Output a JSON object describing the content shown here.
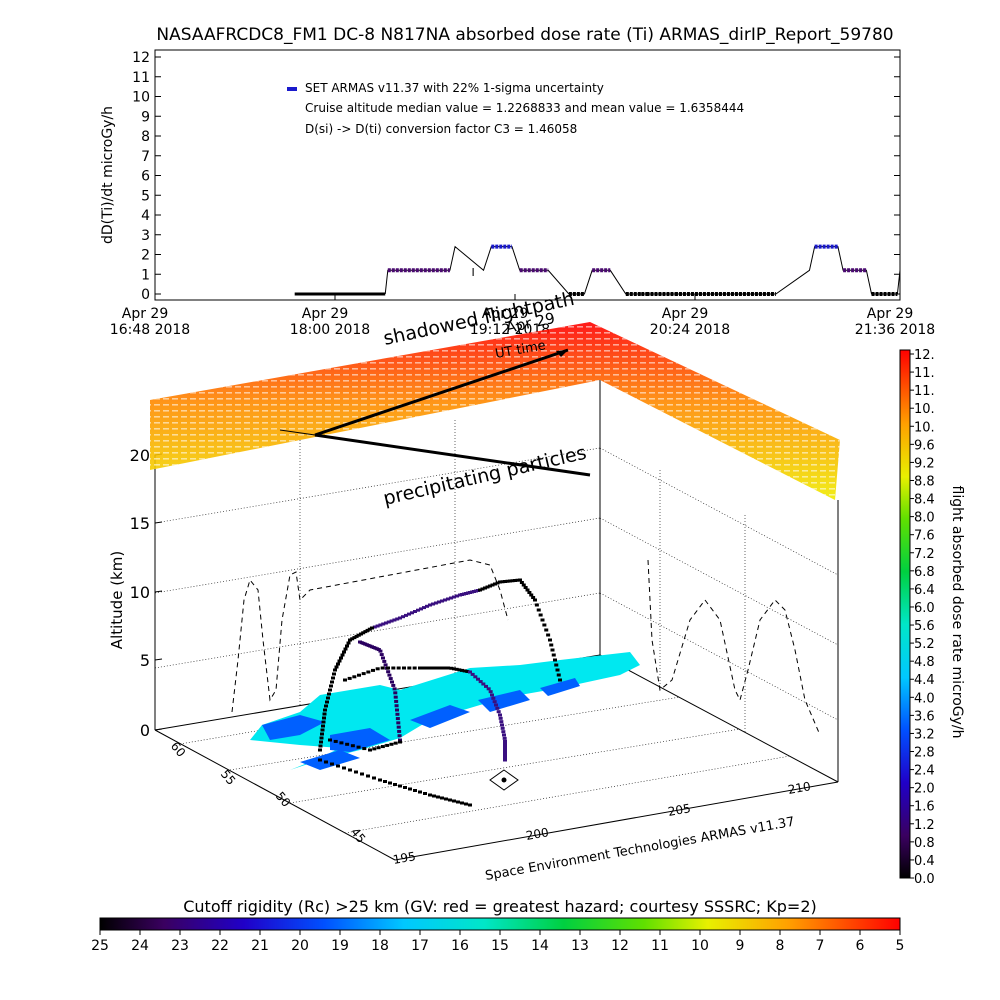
{
  "header": {
    "title": "NASAAFRCDC8_FM1 DC-8   N817NA absorbed dose rate (Ti) ARMAS_dirIP_Report_59780"
  },
  "top_plot": {
    "ylabel": "dD(Ti)/dt microGy/h",
    "yticks": [
      "0",
      "1",
      "2",
      "3",
      "4",
      "5",
      "6",
      "7",
      "8",
      "9",
      "10",
      "11",
      "12"
    ],
    "xticks": [
      {
        "line1": "Apr 29",
        "line2": "16:48 2018"
      },
      {
        "line1": "Apr 29",
        "line2": "18:00 2018"
      },
      {
        "line1": "Apr 29",
        "line2": "19:12 2018"
      },
      {
        "line1": "Apr 29",
        "line2": "20:24 2018"
      },
      {
        "line1": "Apr 29",
        "line2": "21:36 2018"
      }
    ],
    "legend": {
      "series": "SET ARMAS v11.37 with 22% 1-sigma uncertainty",
      "note1": "Cruise altitude median value = 1.2268833 and mean value = 1.6358444",
      "note2": "D(si) -> D(ti) conversion factor C3 = 1.46058"
    }
  },
  "chart_data": [
    {
      "type": "line",
      "title": "NASAAFRCDC8_FM1 DC-8   N817NA absorbed dose rate (Ti) ARMAS_dirIP_Report_59780",
      "xlabel": "",
      "ylabel": "dD(Ti)/dt microGy/h",
      "x_unit": "minutes after Apr 29 16:48 2018",
      "ylim": [
        0,
        12
      ],
      "xlim": [
        0,
        288
      ],
      "series": [
        {
          "name": "SET ARMAS v11.37 with 22% 1-sigma uncertainty",
          "x": [
            0,
            89,
            90,
            114,
            116,
            127,
            130,
            138,
            141,
            152,
            160,
            166,
            169,
            176,
            182,
            188,
            190,
            201,
            240,
            253,
            255,
            264,
            266,
            275,
            277,
            287,
            288
          ],
          "y": [
            null,
            0,
            1.2,
            1.2,
            2.4,
            1.2,
            2.4,
            2.4,
            1.2,
            1.2,
            0,
            0,
            1.2,
            1.2,
            0,
            0,
            0,
            0,
            0,
            1.2,
            2.4,
            2.4,
            1.2,
            1.2,
            0,
            0,
            1.2
          ]
        }
      ],
      "annotations": [
        "SET ARMAS v11.37 with 22% 1-sigma uncertainty",
        "Cruise altitude median value = 1.2268833 and mean value = 1.6358444",
        "D(si) -> D(ti) conversion factor C3 = 1.46058"
      ]
    },
    {
      "type": "scatter",
      "title": "",
      "ylabel": "Altitude (km)",
      "yticks": [
        "0",
        "5",
        "10",
        "15",
        "20"
      ],
      "ylim": [
        0,
        20
      ],
      "x_axis_ticks": [
        "195",
        "200",
        "205",
        "210"
      ],
      "depth_axis_ticks": [
        "45",
        "50",
        "55",
        "60"
      ],
      "annotations": [
        "shadowed flightpath",
        "UT time",
        "precipitating particles",
        "Apr 29",
        "Space Environment Technologies ARMAS v11.37"
      ]
    },
    {
      "type": "heatmap",
      "name": "colorbar-right",
      "label": "flight absorbed dose rate microGy/h",
      "ticks": [
        "12.",
        "11.",
        "11.",
        "10.",
        "10.",
        "9.6",
        "9.2",
        "8.8",
        "8.4",
        "8.0",
        "7.6",
        "7.2",
        "6.8",
        "6.4",
        "6.0",
        "5.6",
        "5.2",
        "4.8",
        "4.4",
        "4.0",
        "3.6",
        "3.2",
        "2.8",
        "2.4",
        "2.0",
        "1.6",
        "1.2",
        "0.8",
        "0.4",
        "0.0"
      ],
      "range": [
        0,
        12
      ]
    },
    {
      "type": "heatmap",
      "name": "colorbar-bottom",
      "label": "Cutoff rigidity (Rc) >25 km (GV: red = greatest hazard; courtesy SSSRC; Kp=2)",
      "ticks": [
        "25",
        "24",
        "23",
        "22",
        "21",
        "20",
        "19",
        "18",
        "17",
        "16",
        "15",
        "14",
        "13",
        "12",
        "11",
        "10",
        "9",
        "8",
        "7",
        "6",
        "5"
      ],
      "range": [
        25,
        5
      ]
    }
  ],
  "scene3d": {
    "ylabel": "Altitude (km)",
    "yticks": [
      "0",
      "5",
      "10",
      "15",
      "20"
    ],
    "xticks": [
      "195",
      "200",
      "205",
      "210"
    ],
    "depthticks": [
      "45",
      "50",
      "55",
      "60"
    ],
    "label_shadowed": "shadowed flightpath",
    "label_ut": "UT time",
    "label_precip": "precipitating particles",
    "label_apr": "Apr 29",
    "footer": "Space Environment Technologies ARMAS v11.37"
  },
  "colorbar_right": {
    "label": "flight absorbed dose rate microGy/h",
    "ticks": [
      "12.",
      "11.",
      "11.",
      "10.",
      "10.",
      "9.6",
      "9.2",
      "8.8",
      "8.4",
      "8.0",
      "7.6",
      "7.2",
      "6.8",
      "6.4",
      "6.0",
      "5.6",
      "5.2",
      "4.8",
      "4.4",
      "4.0",
      "3.6",
      "3.2",
      "2.8",
      "2.4",
      "2.0",
      "1.6",
      "1.2",
      "0.8",
      "0.4",
      "0.0"
    ]
  },
  "colorbar_bottom": {
    "label": "Cutoff rigidity (Rc) >25 km (GV: red = greatest hazard; courtesy SSSRC; Kp=2)",
    "ticks": [
      "25",
      "24",
      "23",
      "22",
      "21",
      "20",
      "19",
      "18",
      "17",
      "16",
      "15",
      "14",
      "13",
      "12",
      "11",
      "10",
      "9",
      "8",
      "7",
      "6",
      "5"
    ]
  },
  "colors": {
    "marker_blue": "#1a1acc",
    "marker_purple": "#4a0a70",
    "cyan": "#00e5ee",
    "red": "#ff0000"
  }
}
